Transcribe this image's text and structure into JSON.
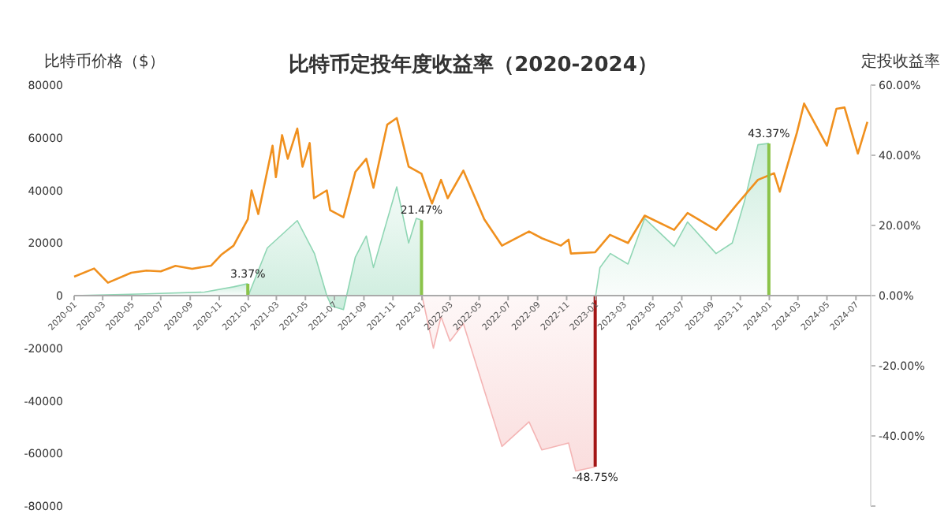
{
  "chart_data": {
    "type": "line",
    "title": "比特币定投年度收益率（2020-2024）",
    "ylabel": "比特币价格（$）",
    "y2label": "定投收益率",
    "xlim": [
      "2020-01-01",
      "2024-08-01"
    ],
    "xticks": [
      "2020-01",
      "2020-03",
      "2020-05",
      "2020-07",
      "2020-09",
      "2020-11",
      "2021-01",
      "2021-03",
      "2021-05",
      "2021-07",
      "2021-09",
      "2021-11",
      "2022-01",
      "2022-03",
      "2022-05",
      "2022-07",
      "2022-09",
      "2022-11",
      "2023-01",
      "2023-03",
      "2023-05",
      "2023-07",
      "2023-09",
      "2023-11",
      "2024-01",
      "2024-03",
      "2024-05",
      "2024-07"
    ],
    "ylim": [
      -80000,
      80000
    ],
    "yticks": [
      -80000,
      -60000,
      -40000,
      -20000,
      0,
      20000,
      40000,
      60000,
      80000
    ],
    "y2lim": [
      -60,
      60
    ],
    "y2ticks": [
      {
        "value": -60,
        "label": null
      },
      {
        "value": -40,
        "label": "-40.00%"
      },
      {
        "value": -20,
        "label": "-20.00%"
      },
      {
        "value": 0,
        "label": "0.00%"
      },
      {
        "value": 20,
        "label": "20.00%"
      },
      {
        "value": 40,
        "label": "40.00%"
      },
      {
        "value": 60,
        "label": "60.00%"
      }
    ],
    "grid": false,
    "series": [
      {
        "type": "area",
        "axis": "y2",
        "color": "#8fd6b4",
        "x": [
          "2020-01-01",
          "2020-06-01",
          "2020-10-01",
          "2020-12-01",
          "2020-12-31"
        ],
        "values": [
          0,
          0.5,
          1,
          2.5,
          3.4
        ]
      },
      {
        "type": "area",
        "axis": "y2",
        "color": "#8fd6b4",
        "x": [
          "2021-01-01",
          "2021-02-10",
          "2021-04-14",
          "2021-05-20",
          "2021-06-15",
          "2021-06-25",
          "2021-07-20",
          "2021-08-14",
          "2021-09-06",
          "2021-09-21",
          "2021-11-09",
          "2021-12-04",
          "2021-12-20",
          "2021-12-31"
        ],
        "values": [
          0,
          13.6,
          21.4,
          12,
          0,
          -3,
          -4,
          11,
          17,
          8,
          31,
          15,
          22,
          21.5
        ]
      },
      {
        "type": "area",
        "axis": "y2",
        "color": "#f4b4b4",
        "x": [
          "2022-01-01",
          "2022-01-25",
          "2022-02-10",
          "2022-03-01",
          "2022-03-29",
          "2022-05-12",
          "2022-06-18",
          "2022-08-14",
          "2022-09-10",
          "2022-11-05",
          "2022-11-20",
          "2022-12-31"
        ],
        "values": [
          0,
          -15,
          -6,
          -13,
          -8,
          -27,
          -43,
          -36,
          -44,
          -42,
          -50,
          -48.8
        ]
      },
      {
        "type": "area",
        "axis": "y2",
        "color": "#8fd6b4",
        "x": [
          "2023-01-01",
          "2023-01-10",
          "2023-02-01",
          "2023-03-10",
          "2023-04-14",
          "2023-06-15",
          "2023-07-13",
          "2023-09-11",
          "2023-10-15",
          "2023-11-10",
          "2023-12-08",
          "2023-12-31"
        ],
        "values": [
          0,
          8,
          12,
          9,
          22,
          14,
          21,
          12,
          15,
          27,
          43,
          43.4
        ]
      },
      {
        "axis": "y",
        "color": "#f0901e",
        "x": [
          "2020-01-01",
          "2020-02-12",
          "2020-03-12",
          "2020-04-30",
          "2020-06-01",
          "2020-07-01",
          "2020-08-01",
          "2020-09-05",
          "2020-10-15",
          "2020-11-05",
          "2020-12-01",
          "2020-12-31",
          "2021-01-08",
          "2021-01-22",
          "2021-02-21",
          "2021-02-28",
          "2021-03-13",
          "2021-03-25",
          "2021-04-14",
          "2021-04-25",
          "2021-05-10",
          "2021-05-19",
          "2021-06-15",
          "2021-06-22",
          "2021-07-20",
          "2021-08-14",
          "2021-09-06",
          "2021-09-21",
          "2021-10-20",
          "2021-11-09",
          "2021-12-04",
          "2021-12-31",
          "2022-01-22",
          "2022-02-10",
          "2022-02-24",
          "2022-03-29",
          "2022-05-12",
          "2022-06-18",
          "2022-08-14",
          "2022-09-10",
          "2022-10-20",
          "2022-11-05",
          "2022-11-10",
          "2022-12-31",
          "2023-01-31",
          "2023-03-10",
          "2023-04-14",
          "2023-06-15",
          "2023-07-13",
          "2023-09-11",
          "2023-10-24",
          "2023-12-08",
          "2024-01-11",
          "2024-01-23",
          "2024-02-28",
          "2024-03-14",
          "2024-05-01",
          "2024-05-21",
          "2024-06-07",
          "2024-07-05",
          "2024-07-25"
        ],
        "values": [
          7200,
          10300,
          4900,
          8700,
          9500,
          9200,
          11300,
          10200,
          11400,
          15500,
          19000,
          29000,
          40000,
          31000,
          57000,
          45000,
          61000,
          52000,
          63500,
          49000,
          58000,
          37000,
          40000,
          32500,
          29800,
          47000,
          52000,
          41000,
          65000,
          67500,
          49000,
          46300,
          35000,
          44000,
          37000,
          47500,
          29000,
          19000,
          24400,
          21800,
          19000,
          21300,
          16000,
          16500,
          23100,
          20000,
          30400,
          25000,
          31400,
          25000,
          34500,
          44000,
          46500,
          39500,
          62000,
          73000,
          57000,
          71000,
          71500,
          54000,
          66000
        ]
      },
      {
        "type": "bar",
        "axis": "y2",
        "x": [
          "2020-12-31",
          "2021-12-31",
          "2022-12-31",
          "2023-12-31"
        ],
        "values": [
          3.37,
          21.47,
          -48.75,
          43.37
        ],
        "colors": [
          "#8bc34a",
          "#8bc34a",
          "#a31515",
          "#8bc34a"
        ],
        "value_labels": [
          "3.37%",
          "21.47%",
          "-48.75%",
          "43.37%"
        ]
      }
    ]
  }
}
